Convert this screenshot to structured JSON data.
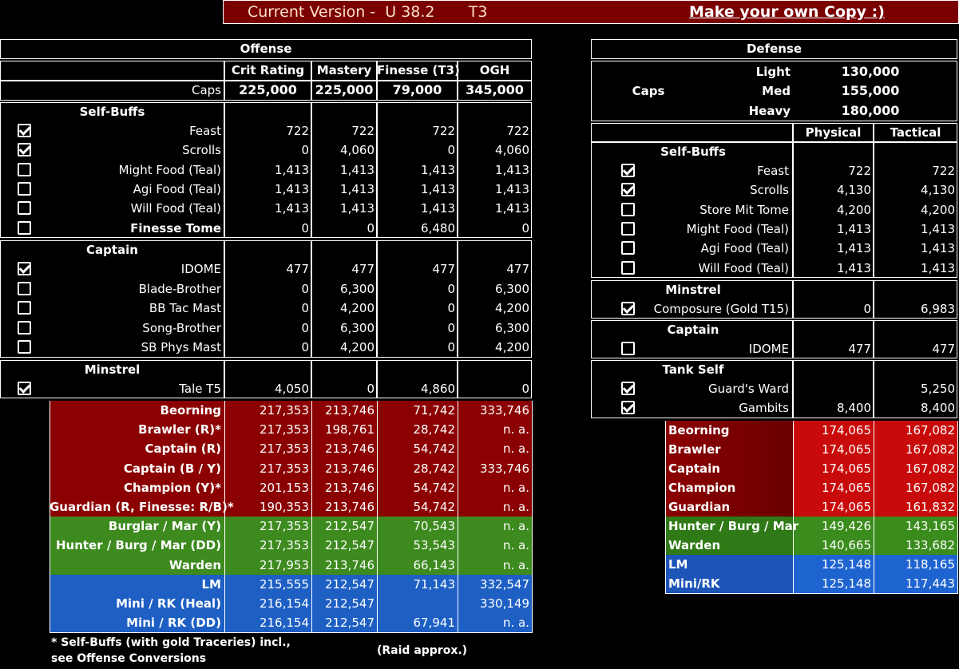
{
  "banner": {
    "version_label": "Current Version -  U 38.2       T3",
    "copy_link": "Make your own Copy :)"
  },
  "offense": {
    "title": "Offense",
    "columns": [
      "Crit Rating",
      "Mastery",
      "Finesse (T3)",
      "OGH"
    ],
    "caps_label": "Caps",
    "caps": [
      "225,000",
      "225,000",
      "79,000",
      "345,000"
    ],
    "sections": [
      {
        "title": "Self-Buffs",
        "rows": [
          {
            "checked": true,
            "label": "Feast",
            "values": [
              "722",
              "722",
              "722",
              "722"
            ]
          },
          {
            "checked": true,
            "label": "Scrolls",
            "values": [
              "0",
              "4,060",
              "0",
              "4,060"
            ]
          },
          {
            "checked": false,
            "label": "Might Food (Teal)",
            "values": [
              "1,413",
              "1,413",
              "1,413",
              "1,413"
            ]
          },
          {
            "checked": false,
            "label": "Agi Food (Teal)",
            "values": [
              "1,413",
              "1,413",
              "1,413",
              "1,413"
            ]
          },
          {
            "checked": false,
            "label": "Will Food (Teal)",
            "values": [
              "1,413",
              "1,413",
              "1,413",
              "1,413"
            ]
          },
          {
            "checked": false,
            "label": "Finesse Tome",
            "values": [
              "0",
              "0",
              "6,480",
              "0"
            ],
            "bold": true
          }
        ]
      },
      {
        "title": "Captain",
        "rows": [
          {
            "checked": true,
            "label": "IDOME",
            "values": [
              "477",
              "477",
              "477",
              "477"
            ]
          },
          {
            "checked": false,
            "label": "Blade-Brother",
            "values": [
              "0",
              "6,300",
              "0",
              "6,300"
            ]
          },
          {
            "checked": false,
            "label": "BB Tac Mast",
            "values": [
              "0",
              "4,200",
              "0",
              "4,200"
            ]
          },
          {
            "checked": false,
            "label": "Song-Brother",
            "values": [
              "0",
              "6,300",
              "0",
              "6,300"
            ]
          },
          {
            "checked": false,
            "label": "SB Phys Mast",
            "values": [
              "0",
              "4,200",
              "0",
              "4,200"
            ]
          }
        ]
      },
      {
        "title": "Minstrel",
        "rows": [
          {
            "checked": true,
            "label": "Tale T5",
            "values": [
              "4,050",
              "0",
              "4,860",
              "0"
            ]
          }
        ]
      }
    ],
    "results": [
      {
        "band": "red",
        "label": "Beorning",
        "values": [
          "217,353",
          "213,746",
          "71,742",
          "333,746"
        ]
      },
      {
        "band": "red",
        "label": "Brawler (R)*",
        "values": [
          "217,353",
          "198,761",
          "28,742",
          "n. a."
        ]
      },
      {
        "band": "red",
        "label": "Captain (R)",
        "values": [
          "217,353",
          "213,746",
          "54,742",
          "n. a."
        ]
      },
      {
        "band": "red",
        "label": "Captain (B / Y)",
        "values": [
          "217,353",
          "213,746",
          "28,742",
          "333,746"
        ]
      },
      {
        "band": "red",
        "label": "Champion (Y)*",
        "values": [
          "201,153",
          "213,746",
          "54,742",
          "n. a."
        ]
      },
      {
        "band": "red",
        "label": "Guardian (R, Finesse: R/B)*",
        "values": [
          "190,353",
          "213,746",
          "54,742",
          "n. a."
        ]
      },
      {
        "band": "green",
        "label": "Burglar / Mar (Y)",
        "values": [
          "217,353",
          "212,547",
          "70,543",
          "n. a."
        ]
      },
      {
        "band": "green",
        "label": "Hunter / Burg / Mar (DD)",
        "values": [
          "217,353",
          "212,547",
          "53,543",
          "n. a."
        ]
      },
      {
        "band": "green",
        "label": "Warden",
        "values": [
          "217,953",
          "213,746",
          "66,143",
          "n. a."
        ]
      },
      {
        "band": "blue",
        "label": "LM",
        "values": [
          "215,555",
          "212,547",
          "71,143",
          "332,547"
        ]
      },
      {
        "band": "blue",
        "label": "Mini / RK (Heal)",
        "values": [
          "216,154",
          "212,547",
          "",
          "330,149"
        ]
      },
      {
        "band": "blue",
        "label": "Mini / RK (DD)",
        "values": [
          "216,154",
          "212,547",
          "67,941",
          "n. a."
        ]
      }
    ],
    "footnote_1": "* Self-Buffs (with gold Traceries) incl.,",
    "footnote_2": "see Offense Conversions",
    "raid_note": "(Raid approx.)"
  },
  "defense": {
    "title": "Defense",
    "caps_label": "Caps",
    "caps": [
      {
        "label": "Light",
        "value": "130,000"
      },
      {
        "label": "Med",
        "value": "155,000"
      },
      {
        "label": "Heavy",
        "value": "180,000"
      }
    ],
    "columns": [
      "Physical",
      "Tactical"
    ],
    "sections": [
      {
        "title": "Self-Buffs",
        "rows": [
          {
            "checked": true,
            "label": "Feast",
            "values": [
              "722",
              "722"
            ]
          },
          {
            "checked": true,
            "label": "Scrolls",
            "values": [
              "4,130",
              "4,130"
            ]
          },
          {
            "checked": false,
            "label": "Store Mit Tome",
            "values": [
              "4,200",
              "4,200"
            ]
          },
          {
            "checked": false,
            "label": "Might Food (Teal)",
            "values": [
              "1,413",
              "1,413"
            ]
          },
          {
            "checked": false,
            "label": "Agi Food (Teal)",
            "values": [
              "1,413",
              "1,413"
            ]
          },
          {
            "checked": false,
            "label": "Will Food (Teal)",
            "values": [
              "1,413",
              "1,413"
            ]
          }
        ]
      },
      {
        "title": "Minstrel",
        "rows": [
          {
            "checked": true,
            "label": "Composure (Gold T15)",
            "values": [
              "0",
              "6,983"
            ]
          }
        ]
      },
      {
        "title": "Captain",
        "rows": [
          {
            "checked": false,
            "label": "IDOME",
            "values": [
              "477",
              "477"
            ]
          }
        ]
      },
      {
        "title": "Tank Self",
        "rows": [
          {
            "checked": true,
            "label": "Guard's Ward",
            "values": [
              "",
              "5,250"
            ]
          },
          {
            "checked": true,
            "label": "Gambits",
            "values": [
              "8,400",
              "8,400"
            ]
          }
        ]
      }
    ],
    "results": [
      {
        "band": "red",
        "label": "Beorning",
        "values": [
          "174,065",
          "167,082"
        ]
      },
      {
        "band": "red",
        "label": "Brawler",
        "values": [
          "174,065",
          "167,082"
        ]
      },
      {
        "band": "red",
        "label": "Captain",
        "values": [
          "174,065",
          "167,082"
        ]
      },
      {
        "band": "red",
        "label": "Champion",
        "values": [
          "174,065",
          "167,082"
        ]
      },
      {
        "band": "red",
        "label": "Guardian",
        "values": [
          "174,065",
          "161,832"
        ]
      },
      {
        "band": "green",
        "label": "Hunter / Burg / Mar",
        "values": [
          "149,426",
          "143,165"
        ]
      },
      {
        "band": "green",
        "label": "Warden",
        "values": [
          "140,665",
          "133,682"
        ]
      },
      {
        "band": "blue",
        "label": "LM",
        "values": [
          "125,148",
          "118,165"
        ]
      },
      {
        "band": "blue",
        "label": "Mini/RK",
        "values": [
          "125,148",
          "117,443"
        ]
      }
    ]
  },
  "colors": {
    "banner": "#7a0000",
    "red": "#8b0000",
    "green": "#3d8a1e",
    "blue": "#1e5fc4"
  }
}
